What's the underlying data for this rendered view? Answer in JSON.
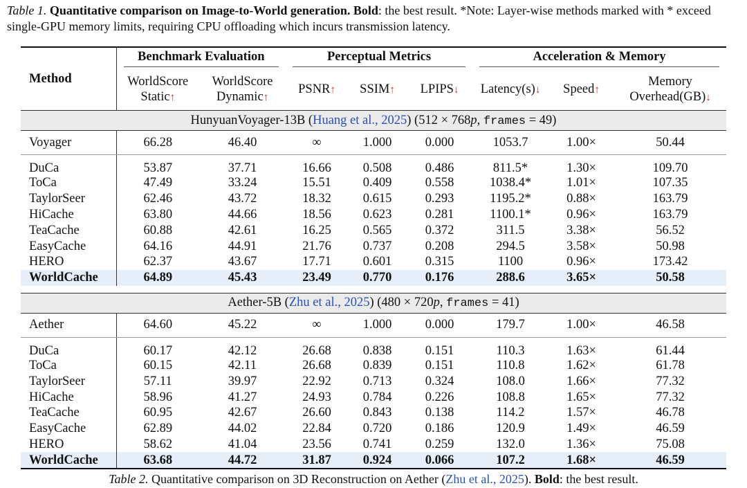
{
  "caption": {
    "label": "Table 1.",
    "title": "Quantitative comparison on Image-to-World generation.",
    "bold": "Bold",
    "text": ": the best result. *Note: Layer-wise methods marked with * exceed single-GPU memory limits, requiring CPU offloading which incurs transmission latency."
  },
  "table": {
    "method_header": "Method",
    "groups": [
      "Benchmark Evaluation",
      "Perceptual Metrics",
      "Acceleration & Memory"
    ],
    "columns": [
      {
        "label": "WorldScore Static",
        "arrow": "↑"
      },
      {
        "label": "WorldScore Dynamic",
        "arrow": "↑"
      },
      {
        "label": "PSNR",
        "arrow": "↑"
      },
      {
        "label": "SSIM",
        "arrow": "↑"
      },
      {
        "label": "LPIPS",
        "arrow": "↓"
      },
      {
        "label": "Latency(s)",
        "arrow": "↓"
      },
      {
        "label": "Speed",
        "arrow": "↑"
      },
      {
        "label": "Memory Overhead(GB)",
        "arrow": "↓"
      }
    ],
    "sections": [
      {
        "title": {
          "name": "HunyuanVoyager-13B (",
          "cite": "Huang et al., 2025",
          "res": ") (512 × 768",
          "p": "p",
          "sep": ", ",
          "frames": "frames",
          "count": " = 49)"
        },
        "baseline": {
          "method": "Voyager",
          "cells": [
            "66.28",
            "46.40",
            "∞",
            "1.000",
            "0.000",
            "1053.7",
            "1.00×",
            "50.44"
          ]
        },
        "rows": [
          {
            "method": "DuCa",
            "cells": [
              "53.87",
              "37.71",
              "16.66",
              "0.508",
              "0.486",
              "811.5*",
              "1.30×",
              "109.70"
            ]
          },
          {
            "method": "ToCa",
            "cells": [
              "47.49",
              "33.24",
              "15.51",
              "0.409",
              "0.558",
              "1038.4*",
              "1.01×",
              "107.35"
            ]
          },
          {
            "method": "TaylorSeer",
            "cells": [
              "62.46",
              "43.72",
              "18.32",
              "0.615",
              "0.293",
              "1195.2*",
              "0.88×",
              "163.79"
            ]
          },
          {
            "method": "HiCache",
            "cells": [
              "63.80",
              "44.66",
              "18.56",
              "0.623",
              "0.281",
              "1100.1*",
              "0.96×",
              "163.79"
            ]
          },
          {
            "method": "TeaCache",
            "cells": [
              "60.88",
              "42.61",
              "16.25",
              "0.565",
              "0.372",
              "311.5",
              "3.38×",
              "56.52"
            ]
          },
          {
            "method": "EasyCache",
            "cells": [
              "64.16",
              "44.91",
              "21.76",
              "0.737",
              "0.208",
              "294.5",
              "3.58×",
              "50.98"
            ]
          },
          {
            "method": "HERO",
            "cells": [
              "62.37",
              "43.67",
              "17.71",
              "0.601",
              "0.315",
              "1100",
              "0.96×",
              "173.42"
            ]
          },
          {
            "method": "WorldCache",
            "cells": [
              "64.89",
              "45.43",
              "23.49",
              "0.770",
              "0.176",
              "288.6",
              "3.65×",
              "50.58"
            ],
            "highlight": true
          }
        ]
      },
      {
        "title": {
          "name": "Aether-5B (",
          "cite": "Zhu et al., 2025",
          "res": ") (480 × 720",
          "p": "p",
          "sep": ", ",
          "frames": "frames",
          "count": " = 41)"
        },
        "baseline": {
          "method": "Aether",
          "cells": [
            "64.60",
            "45.22",
            "∞",
            "1.000",
            "0.000",
            "179.7",
            "1.00×",
            "46.58"
          ]
        },
        "rows": [
          {
            "method": "DuCa",
            "cells": [
              "60.17",
              "42.12",
              "26.68",
              "0.838",
              "0.151",
              "110.3",
              "1.63×",
              "61.44"
            ]
          },
          {
            "method": "ToCa",
            "cells": [
              "60.15",
              "42.11",
              "26.68",
              "0.839",
              "0.151",
              "110.8",
              "1.62×",
              "61.78"
            ]
          },
          {
            "method": "TaylorSeer",
            "cells": [
              "57.11",
              "39.97",
              "22.92",
              "0.713",
              "0.324",
              "108.0",
              "1.66×",
              "77.32"
            ]
          },
          {
            "method": "HiCache",
            "cells": [
              "58.96",
              "41.27",
              "24.93",
              "0.784",
              "0.226",
              "108.8",
              "1.65×",
              "77.32"
            ]
          },
          {
            "method": "TeaCache",
            "cells": [
              "60.95",
              "42.67",
              "26.60",
              "0.843",
              "0.138",
              "114.2",
              "1.57×",
              "46.78"
            ]
          },
          {
            "method": "EasyCache",
            "cells": [
              "62.89",
              "44.02",
              "22.84",
              "0.720",
              "0.186",
              "120.9",
              "1.49×",
              "46.59"
            ]
          },
          {
            "method": "HERO",
            "cells": [
              "58.62",
              "41.04",
              "23.56",
              "0.741",
              "0.259",
              "132.0",
              "1.36×",
              "75.08"
            ]
          },
          {
            "method": "WorldCache",
            "cells": [
              "63.68",
              "44.72",
              "31.87",
              "0.924",
              "0.066",
              "107.2",
              "1.68×",
              "46.59"
            ],
            "highlight": true
          }
        ]
      }
    ]
  },
  "footer": {
    "label": "Table 2.",
    "text": "Quantitative comparison on 3D Reconstruction on Aether (",
    "cite": "Zhu et al., 2025",
    "text2": ").",
    "bold": "Bold",
    "text3": ": the best result."
  }
}
